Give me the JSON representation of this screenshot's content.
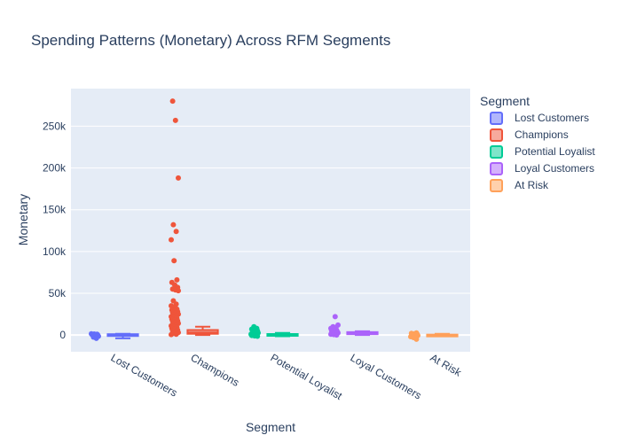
{
  "chart_data": {
    "type": "box",
    "title": "Spending Patterns (Monetary) Across RFM Segments",
    "xlabel": "Segment",
    "ylabel": "Monetary",
    "ylim": [
      -20000,
      295000
    ],
    "yticks": [
      0,
      50000,
      100000,
      150000,
      200000,
      250000
    ],
    "ytick_labels": [
      "0",
      "50k",
      "100k",
      "150k",
      "200k",
      "250k"
    ],
    "legend": {
      "title": "Segment",
      "placement": "right"
    },
    "categories": [
      "Lost Customers",
      "Champions",
      "Potential Loyalist",
      "Loyal Customers",
      "At Risk"
    ],
    "series": [
      {
        "name": "Lost Customers",
        "color": "#636efa",
        "box": {
          "min": -4000,
          "q1": -400,
          "median": 300,
          "q3": 1000,
          "max": 1500
        },
        "points": [
          1500,
          1200,
          900,
          600,
          300,
          0,
          -300,
          -800,
          -1500,
          -2500,
          -4000
        ]
      },
      {
        "name": "Champions",
        "color": "#ef553b",
        "box": {
          "min": 0,
          "q1": 1500,
          "median": 3000,
          "q3": 6000,
          "max": 10000
        },
        "points": [
          280000,
          257000,
          188000,
          132000,
          124000,
          114000,
          89000,
          66000,
          63000,
          60000,
          57000,
          55000,
          54000,
          53000,
          41000,
          37000,
          35000,
          33000,
          31000,
          30000,
          29000,
          28000,
          27000,
          26000,
          25000,
          24000,
          23000,
          22000,
          21000,
          20000,
          19000,
          18000,
          17000,
          16000,
          15000,
          14000,
          13000,
          12000,
          11000,
          10000,
          9000,
          8000,
          7000,
          6000,
          5000,
          4000,
          3000,
          2000,
          1000,
          500
        ]
      },
      {
        "name": "Potential Loyalist",
        "color": "#00cc96",
        "box": {
          "min": -1500,
          "q1": 0,
          "median": 600,
          "q3": 1200,
          "max": 2500
        },
        "points": [
          10000,
          8000,
          7000,
          6000,
          5000,
          4000,
          3000,
          2500,
          2000,
          1500,
          1000,
          500,
          0,
          -500,
          -1000,
          -1500
        ]
      },
      {
        "name": "Loyal Customers",
        "color": "#ab63fa",
        "box": {
          "min": 0,
          "q1": 1000,
          "median": 2000,
          "q3": 3500,
          "max": 4500
        },
        "points": [
          22000,
          12000,
          10000,
          9000,
          8000,
          7000,
          6000,
          5000,
          4500,
          4000,
          3500,
          3000,
          2500,
          2000,
          1500,
          1000,
          500,
          0
        ]
      },
      {
        "name": "At Risk",
        "color": "#ffa15a",
        "box": {
          "min": -1500,
          "q1": -500,
          "median": 0,
          "q3": 500,
          "max": 1500
        },
        "points": [
          2500,
          2000,
          1500,
          1000,
          500,
          0,
          -500,
          -1000,
          -1500,
          -2000,
          -3000,
          -5000
        ]
      }
    ]
  }
}
